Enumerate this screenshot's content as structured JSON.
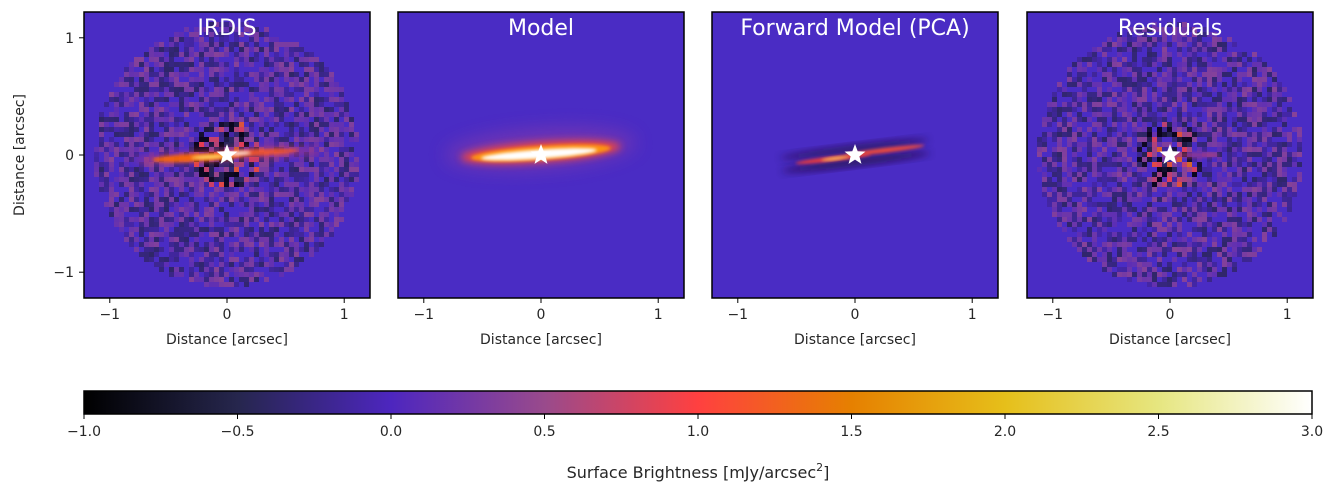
{
  "figure": {
    "panels": [
      {
        "title": "IRDIS",
        "kind": "observed"
      },
      {
        "title": "Model",
        "kind": "model"
      },
      {
        "title": "Forward Model (PCA)",
        "kind": "forward"
      },
      {
        "title": "Residuals",
        "kind": "residual"
      }
    ],
    "xlabel": "Distance [arcsec]",
    "ylabel": "Distance [arcsec]",
    "ticks": {
      "values": [
        -1,
        0,
        1
      ],
      "labels": [
        "−1",
        "0",
        "1"
      ]
    },
    "axis_range": [
      -1.22,
      1.22
    ],
    "star_marker": {
      "x": 0,
      "y": 0,
      "color": "#ffffff",
      "icon": "star-icon"
    },
    "colorbar": {
      "label_main": "Surface Brightness [mJy/arcsec",
      "label_sup": "2",
      "label_end": "]",
      "range": [
        -1.0,
        3.0
      ],
      "ticks": [
        -1.0,
        -0.5,
        0.0,
        0.5,
        1.0,
        1.5,
        2.0,
        2.5,
        3.0
      ],
      "tick_labels": [
        "−1.0",
        "−0.5",
        "0.0",
        "0.5",
        "1.0",
        "1.5",
        "2.0",
        "2.5",
        "3.0"
      ],
      "colormap": "CMRmap",
      "stops": [
        {
          "value": -1.0,
          "color": "#000000"
        },
        {
          "value": -0.5,
          "color": "#26264d"
        },
        {
          "value": 0.0,
          "color": "#4d26bf"
        },
        {
          "value": 0.5,
          "color": "#994a8c"
        },
        {
          "value": 1.0,
          "color": "#ff4040"
        },
        {
          "value": 1.5,
          "color": "#e68000"
        },
        {
          "value": 2.0,
          "color": "#e6bf1a"
        },
        {
          "value": 2.5,
          "color": "#e6e680"
        },
        {
          "value": 3.0,
          "color": "#ffffff"
        }
      ]
    },
    "background_color": "#4a2cc4"
  }
}
